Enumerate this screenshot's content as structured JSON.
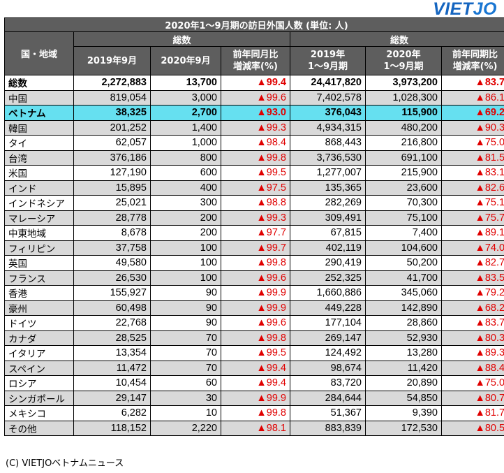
{
  "brand": {
    "logo_main": "VIET",
    "logo_accent": "JO"
  },
  "table": {
    "title": "2020年1～9月期の訪日外国人数 (単位: 人)",
    "region_header": "国・地域",
    "group_headers": [
      "総数",
      "総数"
    ],
    "sub_headers": [
      [
        "2019年9月"
      ],
      [
        "2020年9月"
      ],
      [
        "前年同月比",
        "増減率(%)"
      ],
      [
        "2019年",
        "1～9月期"
      ],
      [
        "2020年",
        "1～9月期"
      ],
      [
        "前年同期比",
        "増減率(%)"
      ]
    ],
    "rows": [
      {
        "name": "総数",
        "style": "total",
        "values": [
          "2,272,883",
          "13,700",
          "▲99.4",
          "24,417,820",
          "3,973,200",
          "▲83.7"
        ]
      },
      {
        "name": "中国",
        "style": "gray",
        "values": [
          "819,054",
          "3,000",
          "▲99.6",
          "7,402,578",
          "1,028,300",
          "▲86.1"
        ]
      },
      {
        "name": "ベトナム",
        "style": "hl",
        "values": [
          "38,325",
          "2,700",
          "▲93.0",
          "376,043",
          "115,900",
          "▲69.2"
        ]
      },
      {
        "name": "韓国",
        "style": "gray",
        "values": [
          "201,252",
          "1,400",
          "▲99.3",
          "4,934,315",
          "480,200",
          "▲90.3"
        ]
      },
      {
        "name": "タイ",
        "style": "plain",
        "values": [
          "62,057",
          "1,000",
          "▲98.4",
          "868,443",
          "216,800",
          "▲75.0"
        ]
      },
      {
        "name": "台湾",
        "style": "gray",
        "values": [
          "376,186",
          "800",
          "▲99.8",
          "3,736,530",
          "691,100",
          "▲81.5"
        ]
      },
      {
        "name": "米国",
        "style": "plain",
        "values": [
          "127,190",
          "600",
          "▲99.5",
          "1,277,007",
          "215,900",
          "▲83.1"
        ]
      },
      {
        "name": "インド",
        "style": "gray",
        "values": [
          "15,895",
          "400",
          "▲97.5",
          "135,365",
          "23,600",
          "▲82.6"
        ]
      },
      {
        "name": "インドネシア",
        "style": "plain",
        "values": [
          "25,021",
          "300",
          "▲98.8",
          "282,269",
          "70,300",
          "▲75.1"
        ]
      },
      {
        "name": "マレーシア",
        "style": "gray",
        "values": [
          "28,778",
          "200",
          "▲99.3",
          "309,491",
          "75,100",
          "▲75.7"
        ]
      },
      {
        "name": "中東地域",
        "style": "plain",
        "values": [
          "8,678",
          "200",
          "▲97.7",
          "67,815",
          "7,400",
          "▲89.1"
        ]
      },
      {
        "name": "フィリピン",
        "style": "gray",
        "values": [
          "37,758",
          "100",
          "▲99.7",
          "402,119",
          "104,600",
          "▲74.0"
        ]
      },
      {
        "name": "英国",
        "style": "plain",
        "values": [
          "49,580",
          "100",
          "▲99.8",
          "290,419",
          "50,200",
          "▲82.7"
        ]
      },
      {
        "name": "フランス",
        "style": "gray",
        "values": [
          "26,530",
          "100",
          "▲99.6",
          "252,325",
          "41,700",
          "▲83.5"
        ]
      },
      {
        "name": "香港",
        "style": "plain",
        "values": [
          "155,927",
          "90",
          "▲99.9",
          "1,660,886",
          "345,060",
          "▲79.2"
        ]
      },
      {
        "name": "豪州",
        "style": "gray",
        "values": [
          "60,498",
          "90",
          "▲99.9",
          "449,228",
          "142,890",
          "▲68.2"
        ]
      },
      {
        "name": "ドイツ",
        "style": "plain",
        "values": [
          "22,768",
          "90",
          "▲99.6",
          "177,104",
          "28,860",
          "▲83.7"
        ]
      },
      {
        "name": "カナダ",
        "style": "gray",
        "values": [
          "28,525",
          "70",
          "▲99.8",
          "269,147",
          "52,930",
          "▲80.3"
        ]
      },
      {
        "name": "イタリア",
        "style": "plain",
        "values": [
          "13,354",
          "70",
          "▲99.5",
          "124,492",
          "13,280",
          "▲89.3"
        ]
      },
      {
        "name": "スペイン",
        "style": "gray",
        "values": [
          "11,472",
          "70",
          "▲99.4",
          "98,674",
          "11,420",
          "▲88.4"
        ]
      },
      {
        "name": "ロシア",
        "style": "plain",
        "values": [
          "10,454",
          "60",
          "▲99.4",
          "83,720",
          "20,890",
          "▲75.0"
        ]
      },
      {
        "name": "シンガポール",
        "style": "gray",
        "values": [
          "29,147",
          "30",
          "▲99.9",
          "284,644",
          "54,850",
          "▲80.7"
        ]
      },
      {
        "name": "メキシコ",
        "style": "plain",
        "values": [
          "6,282",
          "10",
          "▲99.8",
          "51,367",
          "9,390",
          "▲81.7"
        ]
      },
      {
        "name": "その他",
        "style": "gray",
        "values": [
          "118,152",
          "2,220",
          "▲98.1",
          "883,839",
          "172,530",
          "▲80.5"
        ]
      }
    ]
  },
  "footer": {
    "credit": "(C) VIETJOベトナムニュース"
  },
  "colors": {
    "header_bg": "#5e5e5e",
    "row_gray": "#d9d9d9",
    "highlight": "#66e0f0",
    "decrease_red": "#e00000",
    "logo_blue": "#1565c0"
  }
}
